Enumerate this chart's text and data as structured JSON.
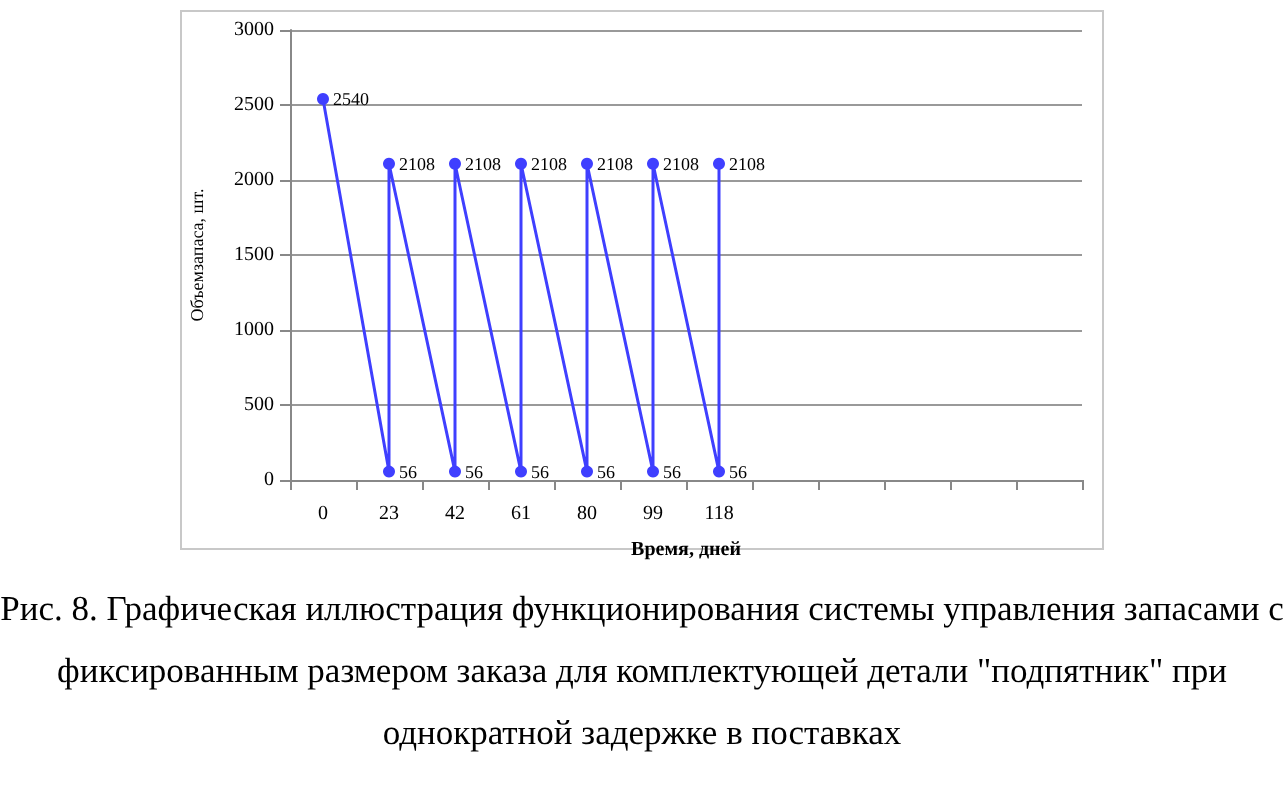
{
  "chart_data": {
    "type": "line",
    "title": "Рис. 8. Графическая иллюстрация функционирования системы управления запасами с фиксированным размером заказа для комплектующей детали \"подпятник\" при однократной задержке в поставках",
    "xlabel": "Время, дней",
    "ylabel": "Объемзапаса, шт.",
    "categories": [
      "0",
      "23",
      "42",
      "61",
      "80",
      "99",
      "118",
      null,
      null,
      null,
      null,
      null
    ],
    "series": [
      {
        "color": "#3f3fff",
        "x": [
          "0",
          "23",
          "23",
          "42",
          "42",
          "61",
          "61",
          "80",
          "80",
          "99",
          "99",
          "118",
          "118"
        ],
        "values": [
          2540,
          56,
          2108,
          56,
          2108,
          56,
          2108,
          56,
          2108,
          56,
          2108,
          56,
          2108
        ]
      }
    ],
    "ylim": [
      0,
      3000
    ],
    "yticks": [
      0,
      500,
      1000,
      1500,
      2000,
      2500,
      3000
    ],
    "grid": "y",
    "marker": "circle",
    "data_labels": true
  }
}
